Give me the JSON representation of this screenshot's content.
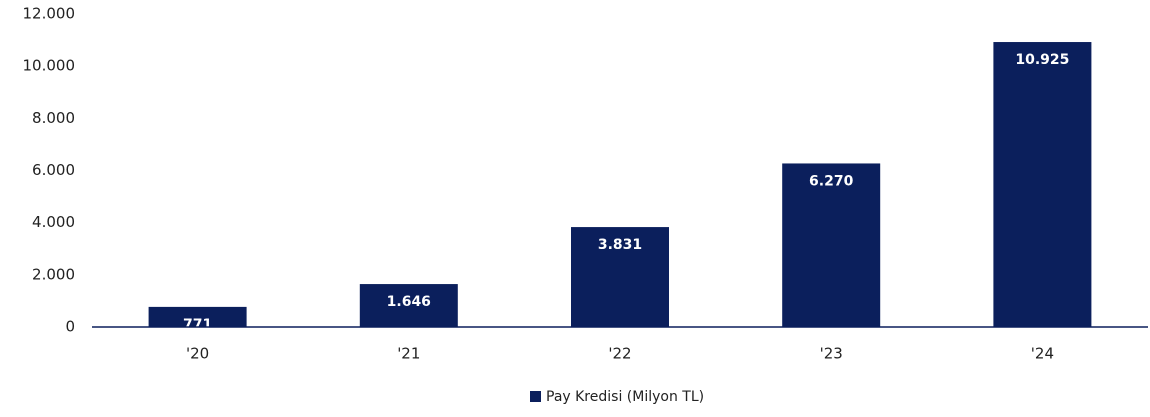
{
  "chart_data": {
    "type": "bar",
    "categories": [
      "'20",
      "'21",
      "'22",
      "'23",
      "'24"
    ],
    "series": [
      {
        "name": "Pay Kredisi (Milyon TL)",
        "color": "#0b1f5c",
        "values": [
          771,
          1646,
          3831,
          6270,
          10925
        ],
        "value_labels": [
          "771",
          "1.646",
          "3.831",
          "6.270",
          "10.925"
        ]
      }
    ],
    "ylim": [
      0,
      12000
    ],
    "yticks": [
      0,
      {
        "value": 2000,
        "label": "2.000"
      },
      {
        "value": 4000,
        "label": "4.000"
      },
      {
        "value": 6000,
        "label": "6.000"
      },
      {
        "value": 8000,
        "label": "8.000"
      },
      {
        "value": 10000,
        "label": "10.000"
      },
      {
        "value": 12000,
        "label": "12.000"
      }
    ],
    "grid": false,
    "legend": "bottom"
  }
}
